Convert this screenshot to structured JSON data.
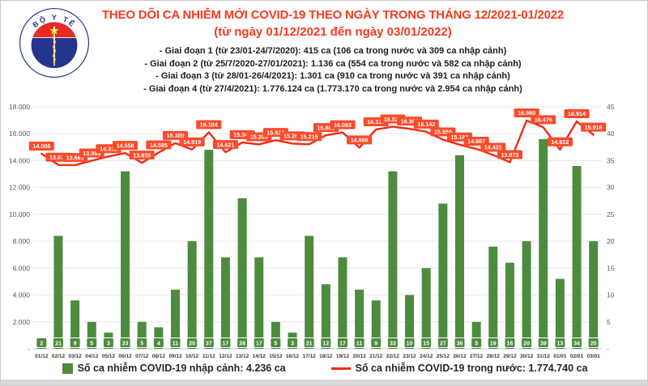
{
  "header": {
    "title": "THEO DÕI CA NHIỄM MỚI COVID-19 THEO NGÀY TRONG THÁNG 12/2021-01/2022",
    "subtitle": "(từ ngày 01/12/2021 đến ngày 03/01/2022)",
    "stages": [
      "- Giai đoạn 1 (từ 23/01-24/7/2020): 415 ca (106 ca trong nước và 309 ca nhập cảnh)",
      "- Giai đoạn 2 (từ 25/7/2020-27/01/2021): 1.136 ca (554 ca trong nước và 582 ca nhập cảnh)",
      "- Giai đoạn 3 (từ 28/01-26/4/2021): 1.301 ca (910 ca trong nước và 391 ca nhập cảnh)",
      "- Giai đoạn 4 (từ 27/4/2021): 1.776.124 ca (1.773.170 ca trong nước và 2.954 ca nhập cảnh)"
    ],
    "logo": {
      "top_text": "BỘ Y TẾ",
      "bottom_text": "MINISTRY OF HEALTH"
    }
  },
  "chart_data": {
    "type": "bar",
    "subtype": "bar+line combo, dual axis",
    "title": "",
    "grid": "horizontal only",
    "categories": [
      "01/12",
      "02/12",
      "03/12",
      "04/12",
      "05/12",
      "06/12",
      "07/12",
      "08/12",
      "09/12",
      "10/12",
      "11/12",
      "12/12",
      "13/12",
      "14/12",
      "15/12",
      "16/12",
      "17/12",
      "18/12",
      "19/12",
      "20/12",
      "21/12",
      "22/12",
      "23/12",
      "24/12",
      "25/12",
      "26/12",
      "27/12",
      "28/12",
      "29/12",
      "30/12",
      "31/12",
      "01/01",
      "02/01",
      "03/01"
    ],
    "series": [
      {
        "name": "Số ca nhiễm COVID-19 nhập cảnh",
        "type": "bar",
        "axis": "right",
        "color": "#4e8b3f",
        "values": [
          2,
          21,
          9,
          5,
          3,
          33,
          5,
          4,
          11,
          20,
          37,
          17,
          28,
          17,
          5,
          3,
          21,
          12,
          17,
          11,
          9,
          33,
          10,
          15,
          27,
          36,
          5,
          19,
          16,
          20,
          39,
          13,
          34,
          20
        ]
      },
      {
        "name": "Số ca nhiễm COVID-19 trong nước",
        "type": "line",
        "axis": "left",
        "color": "#f42a12",
        "label_bg": "#fb4b2a",
        "values": [
          14506,
          13677,
          13661,
          13993,
          14311,
          14558,
          13835,
          14595,
          15300,
          14819,
          16104,
          14621,
          15349,
          15203,
          15522,
          15267,
          15215,
          15883,
          16093,
          14966,
          16316,
          16522,
          16367,
          16142,
          15559,
          15182,
          14867,
          14421,
          13873,
          16980,
          16476,
          14822,
          16914,
          15916
        ]
      }
    ],
    "left_axis": {
      "min": 0,
      "max": 18000,
      "step": 2000,
      "ticks": [
        "18.000",
        "16.000",
        "14.000",
        "12.000",
        "10.000",
        "8.000",
        "6.000",
        "4.000",
        "2.000",
        "-"
      ]
    },
    "right_axis": {
      "min": 0,
      "max": 45,
      "step": 5,
      "ticks": [
        "45",
        "40",
        "35",
        "30",
        "25",
        "20",
        "15",
        "10",
        "5",
        "-"
      ]
    },
    "legend": [
      {
        "label": "Số ca nhiễm COVID-19 nhập cảnh: 4.236 ca"
      },
      {
        "label": "Số ca nhiễm COVID-19 trong nước: 1.774.740 ca"
      }
    ]
  }
}
